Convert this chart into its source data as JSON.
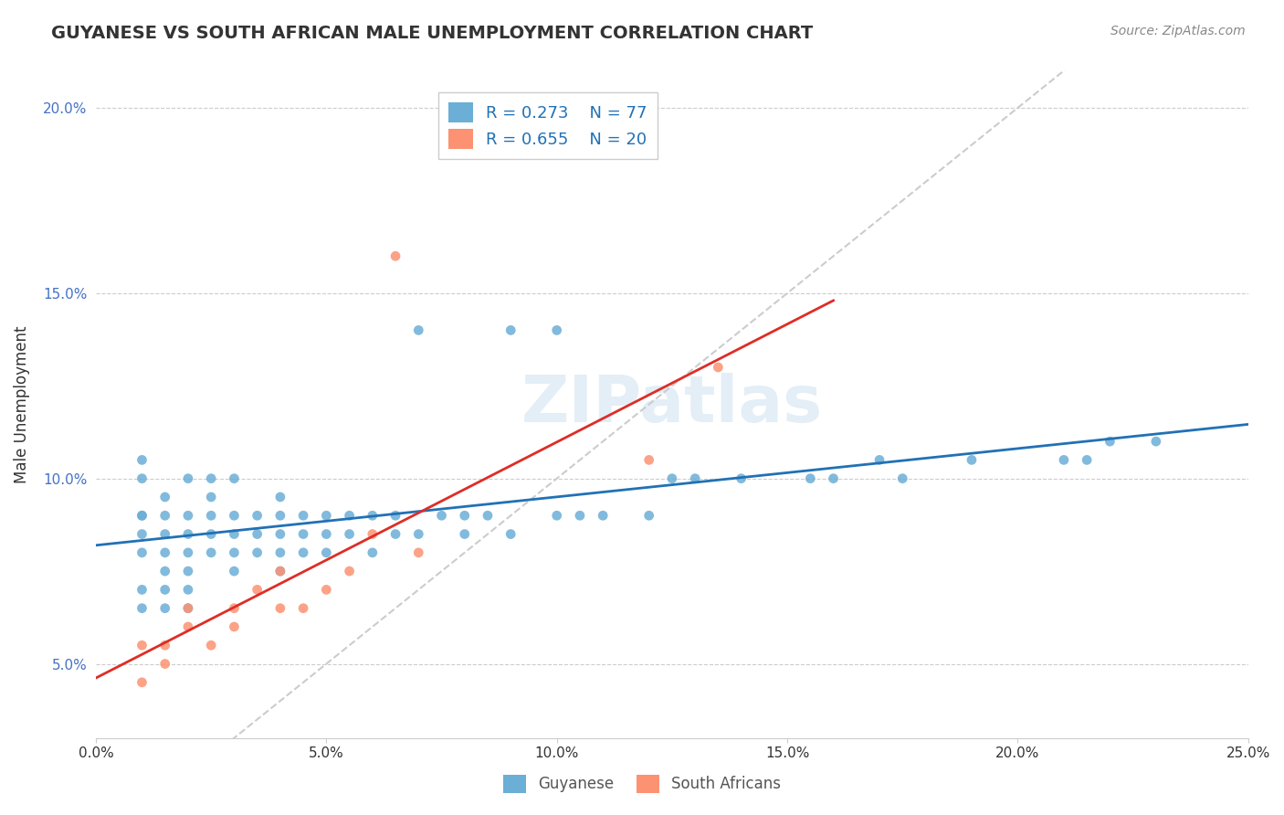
{
  "title": "GUYANESE VS SOUTH AFRICAN MALE UNEMPLOYMENT CORRELATION CHART",
  "source": "Source: ZipAtlas.com",
  "ylabel": "Male Unemployment",
  "xlabel_bottom": "",
  "xlim": [
    0.0,
    0.25
  ],
  "ylim": [
    0.03,
    0.21
  ],
  "x_ticks": [
    0.0,
    0.05,
    0.1,
    0.15,
    0.2,
    0.25
  ],
  "x_tick_labels": [
    "0.0%",
    "5.0%",
    "10.0%",
    "15.0%",
    "20.0%",
    "25.0%"
  ],
  "y_ticks": [
    0.05,
    0.1,
    0.15,
    0.2
  ],
  "y_tick_labels": [
    "5.0%",
    "10.0%",
    "15.0%",
    "20.0%"
  ],
  "legend_labels": [
    "Guyanese",
    "South Africans"
  ],
  "r_guyanese": "0.273",
  "n_guyanese": "77",
  "r_south_african": "0.655",
  "n_south_african": "20",
  "color_guyanese": "#6baed6",
  "color_south_african": "#fc9272",
  "trendline_guyanese_color": "#2171b5",
  "trendline_south_african_color": "#de2d26",
  "trendline_diagonal_color": "#cccccc",
  "watermark": "ZIPatlas",
  "guyanese_x": [
    0.01,
    0.01,
    0.01,
    0.01,
    0.01,
    0.01,
    0.01,
    0.01,
    0.015,
    0.015,
    0.015,
    0.015,
    0.015,
    0.015,
    0.015,
    0.02,
    0.02,
    0.02,
    0.02,
    0.02,
    0.02,
    0.02,
    0.025,
    0.025,
    0.025,
    0.025,
    0.025,
    0.03,
    0.03,
    0.03,
    0.03,
    0.03,
    0.035,
    0.035,
    0.035,
    0.04,
    0.04,
    0.04,
    0.04,
    0.04,
    0.045,
    0.045,
    0.045,
    0.05,
    0.05,
    0.05,
    0.055,
    0.055,
    0.06,
    0.06,
    0.065,
    0.065,
    0.07,
    0.07,
    0.075,
    0.08,
    0.08,
    0.085,
    0.09,
    0.09,
    0.1,
    0.1,
    0.105,
    0.11,
    0.12,
    0.125,
    0.13,
    0.14,
    0.155,
    0.16,
    0.17,
    0.175,
    0.19,
    0.21,
    0.215,
    0.22,
    0.23
  ],
  "guyanese_y": [
    0.065,
    0.07,
    0.08,
    0.085,
    0.09,
    0.09,
    0.1,
    0.105,
    0.065,
    0.07,
    0.075,
    0.08,
    0.085,
    0.09,
    0.095,
    0.065,
    0.07,
    0.075,
    0.08,
    0.085,
    0.09,
    0.1,
    0.08,
    0.085,
    0.09,
    0.095,
    0.1,
    0.075,
    0.08,
    0.085,
    0.09,
    0.1,
    0.08,
    0.085,
    0.09,
    0.075,
    0.08,
    0.085,
    0.09,
    0.095,
    0.08,
    0.085,
    0.09,
    0.08,
    0.085,
    0.09,
    0.085,
    0.09,
    0.08,
    0.09,
    0.085,
    0.09,
    0.085,
    0.14,
    0.09,
    0.085,
    0.09,
    0.09,
    0.085,
    0.14,
    0.09,
    0.14,
    0.09,
    0.09,
    0.09,
    0.1,
    0.1,
    0.1,
    0.1,
    0.1,
    0.105,
    0.1,
    0.105,
    0.105,
    0.105,
    0.11,
    0.11
  ],
  "south_african_x": [
    0.01,
    0.01,
    0.015,
    0.015,
    0.02,
    0.02,
    0.025,
    0.03,
    0.03,
    0.035,
    0.04,
    0.04,
    0.045,
    0.05,
    0.055,
    0.06,
    0.065,
    0.07,
    0.12,
    0.135
  ],
  "south_african_y": [
    0.045,
    0.055,
    0.05,
    0.055,
    0.06,
    0.065,
    0.055,
    0.06,
    0.065,
    0.07,
    0.065,
    0.075,
    0.065,
    0.07,
    0.075,
    0.085,
    0.16,
    0.08,
    0.105,
    0.13
  ]
}
